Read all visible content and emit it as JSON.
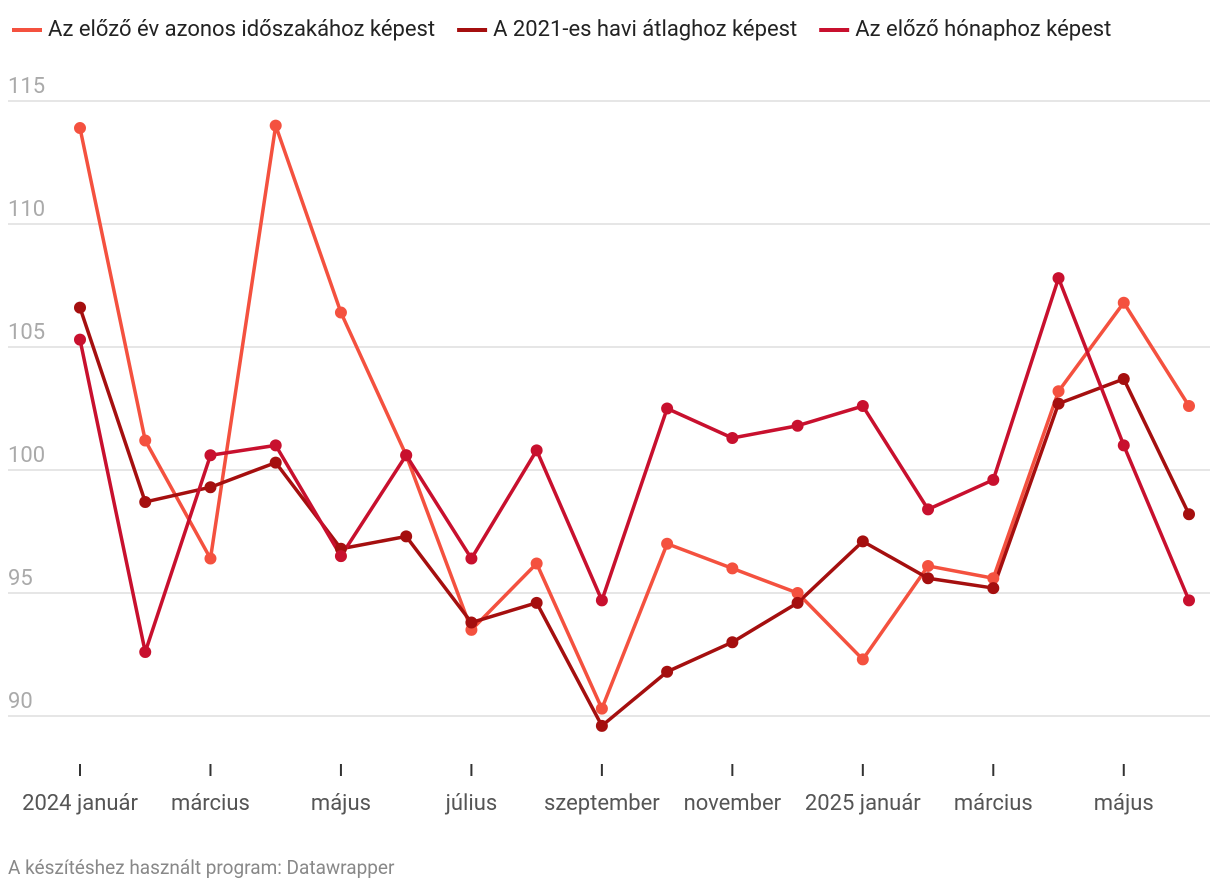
{
  "chart_data": {
    "type": "line",
    "x": [
      "2024 január",
      null,
      "március",
      null,
      "május",
      null,
      "július",
      null,
      "szeptember",
      null,
      "november",
      null,
      "2025 január",
      null,
      "március",
      null,
      "május",
      null
    ],
    "series": [
      {
        "name": "Az előző év azonos időszakához képest",
        "color": "#f4513f",
        "values": [
          113.9,
          101.2,
          96.4,
          114.0,
          106.4,
          100.6,
          93.5,
          96.2,
          90.3,
          97.0,
          96.0,
          95.0,
          92.3,
          96.1,
          95.6,
          103.2,
          106.8,
          102.6
        ]
      },
      {
        "name": "A 2021-es havi átlaghoz képest",
        "color": "#a50f0f",
        "values": [
          106.6,
          98.7,
          99.3,
          100.3,
          96.8,
          97.3,
          93.8,
          94.6,
          89.6,
          91.8,
          93.0,
          94.6,
          97.1,
          95.6,
          95.2,
          102.7,
          103.7,
          98.2
        ]
      },
      {
        "name": "Az előző hónaphoz képest",
        "color": "#c8102e",
        "values": [
          105.3,
          92.6,
          100.6,
          101.0,
          96.5,
          100.6,
          96.4,
          100.8,
          94.7,
          102.5,
          101.3,
          101.8,
          102.6,
          98.4,
          99.6,
          107.8,
          101.0,
          94.7
        ]
      }
    ],
    "ylim": [
      90,
      115
    ],
    "yticks": [
      90,
      95,
      100,
      105,
      110,
      115
    ],
    "grid": true,
    "source": "A készítéshez használt program: Datawrapper"
  }
}
